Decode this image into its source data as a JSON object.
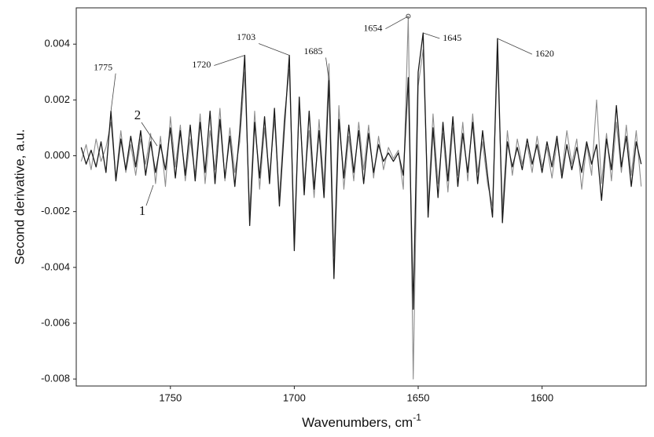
{
  "chart_data": {
    "type": "line",
    "x_label": [
      "Wavenumbers, cm",
      "-1"
    ],
    "y_label": "Second derivative, a.u.",
    "xlim": [
      1788,
      1558
    ],
    "ylim": [
      -0.00825,
      0.0053
    ],
    "xticks": [
      1750,
      1700,
      1650,
      1600
    ],
    "yticks": [
      0.004,
      0.002,
      {
        "value": 0,
        "label": "0.000"
      },
      -0.002,
      -0.004,
      -0.006,
      -0.008
    ],
    "x": [
      1786,
      1784,
      1782,
      1780,
      1778,
      1776,
      1774,
      1772,
      1770,
      1768,
      1766,
      1764,
      1762,
      1760,
      1758,
      1756,
      1754,
      1752,
      1750,
      1748,
      1746,
      1744,
      1742,
      1740,
      1738,
      1736,
      1734,
      1732,
      1730,
      1728,
      1726,
      1724,
      1722,
      1720,
      1718,
      1716,
      1714,
      1712,
      1710,
      1708,
      1706,
      1704,
      1702,
      1700,
      1698,
      1696,
      1694,
      1692,
      1690,
      1688,
      1686,
      1684,
      1682,
      1680,
      1678,
      1676,
      1674,
      1672,
      1670,
      1668,
      1666,
      1664,
      1662,
      1660,
      1658,
      1656,
      1654,
      1652,
      1650,
      1648,
      1646,
      1644,
      1642,
      1640,
      1638,
      1636,
      1634,
      1632,
      1630,
      1628,
      1626,
      1624,
      1622,
      1620,
      1618,
      1616,
      1614,
      1612,
      1610,
      1608,
      1606,
      1604,
      1602,
      1600,
      1598,
      1596,
      1594,
      1592,
      1590,
      1588,
      1586,
      1584,
      1582,
      1580,
      1578,
      1576,
      1574,
      1572,
      1570,
      1568,
      1566,
      1564,
      1562,
      1560
    ],
    "series": [
      {
        "name": "1",
        "color": "#1a1a1a",
        "values": [
          0.0003,
          -0.0003,
          0.0002,
          -0.0004,
          0.0005,
          -0.0006,
          0.0016,
          -0.0009,
          0.0006,
          -0.0005,
          0.0007,
          -0.0004,
          0.0009,
          -0.0007,
          0.0005,
          -0.0006,
          0.0004,
          -0.0005,
          0.001,
          -0.0008,
          0.0009,
          -0.0007,
          0.0011,
          -0.0009,
          0.0012,
          -0.0006,
          0.0016,
          -0.001,
          0.0013,
          -0.0008,
          0.0007,
          -0.0011,
          0.0009,
          0.0036,
          -0.0025,
          0.0012,
          -0.0008,
          0.0014,
          -0.001,
          0.0017,
          -0.0018,
          0.001,
          0.0036,
          -0.0034,
          0.0021,
          -0.0014,
          0.0016,
          -0.0012,
          0.0009,
          -0.0015,
          0.0027,
          -0.0044,
          0.0013,
          -0.0008,
          0.0011,
          -0.0006,
          0.0009,
          -0.001,
          0.0008,
          -0.0006,
          0.0004,
          -0.0002,
          0.0001,
          -0.0002,
          0.0001,
          -0.0007,
          0.0028,
          -0.0055,
          0.003,
          0.0044,
          -0.0022,
          0.001,
          -0.0015,
          0.0012,
          -0.0009,
          0.0014,
          -0.0011,
          0.0008,
          -0.0006,
          0.0012,
          -0.001,
          0.0009,
          -0.0007,
          -0.0022,
          0.0042,
          -0.0024,
          0.0005,
          -0.0004,
          0.0003,
          -0.0005,
          0.0006,
          -0.0003,
          0.0004,
          -0.0006,
          0.0005,
          -0.0004,
          0.0007,
          -0.0008,
          0.0004,
          -0.0005,
          0.0003,
          -0.0006,
          0.0005,
          -0.0003,
          0.0004,
          -0.0016,
          0.0006,
          -0.0005,
          0.0018,
          -0.0004,
          0.0007,
          -0.0011,
          0.0005,
          -0.0003
        ]
      },
      {
        "name": "2",
        "color": "#8c8c8c",
        "values": [
          -0.0002,
          0.0004,
          -0.0005,
          0.0006,
          -0.0002,
          0.0003,
          0.0012,
          -0.0008,
          0.0009,
          -0.0006,
          0.0004,
          -0.0007,
          0.0006,
          -0.0003,
          0.0008,
          -0.001,
          0.0007,
          -0.0011,
          0.0014,
          -0.0004,
          0.0011,
          -0.0009,
          0.0006,
          -0.0007,
          0.0015,
          -0.001,
          0.0009,
          -0.0005,
          0.0017,
          -0.0009,
          0.001,
          -0.0006,
          0.0005,
          0.003,
          -0.0021,
          0.0016,
          -0.0012,
          0.001,
          -0.0007,
          0.0013,
          -0.0015,
          0.0014,
          0.0031,
          -0.0028,
          0.0018,
          -0.001,
          0.0009,
          -0.0015,
          0.0013,
          -0.0011,
          0.0033,
          -0.0036,
          0.0018,
          -0.0012,
          0.0007,
          -0.0009,
          0.0012,
          -0.0005,
          0.0011,
          -0.0008,
          0.0007,
          -0.0005,
          0.0003,
          -0.0001,
          0.0002,
          -0.0012,
          0.005,
          -0.008,
          0.0025,
          0.0038,
          -0.0018,
          0.0015,
          -0.001,
          0.0008,
          -0.0013,
          0.001,
          -0.0007,
          0.0012,
          -0.0009,
          0.0015,
          -0.0006,
          0.0005,
          -0.001,
          -0.0018,
          0.0036,
          -0.0019,
          0.0009,
          -0.0007,
          0.0006,
          -0.0003,
          0.0004,
          -0.0006,
          0.0007,
          -0.0004,
          0.0003,
          -0.0008,
          0.0005,
          -0.0006,
          0.0009,
          -0.0003,
          0.0006,
          -0.0012,
          0.0004,
          -0.0007,
          0.002,
          -0.001,
          0.0008,
          -0.0009,
          0.0012,
          -0.0006,
          0.0011,
          -0.0007,
          0.0009,
          -0.0011
        ]
      }
    ],
    "annotations": [
      {
        "text": "1775",
        "x": 1774,
        "y": 0.0016
      },
      {
        "text": "1720",
        "x": 1720,
        "y": 0.0036
      },
      {
        "text": "1703",
        "x": 1702,
        "y": 0.0036
      },
      {
        "text": "1685",
        "x": 1686,
        "y": 0.0027
      },
      {
        "text": "1654",
        "x": 1654,
        "y": 0.005
      },
      {
        "text": "1645",
        "x": 1648,
        "y": 0.0044
      },
      {
        "text": "1620",
        "x": 1618,
        "y": 0.0042
      }
    ]
  }
}
